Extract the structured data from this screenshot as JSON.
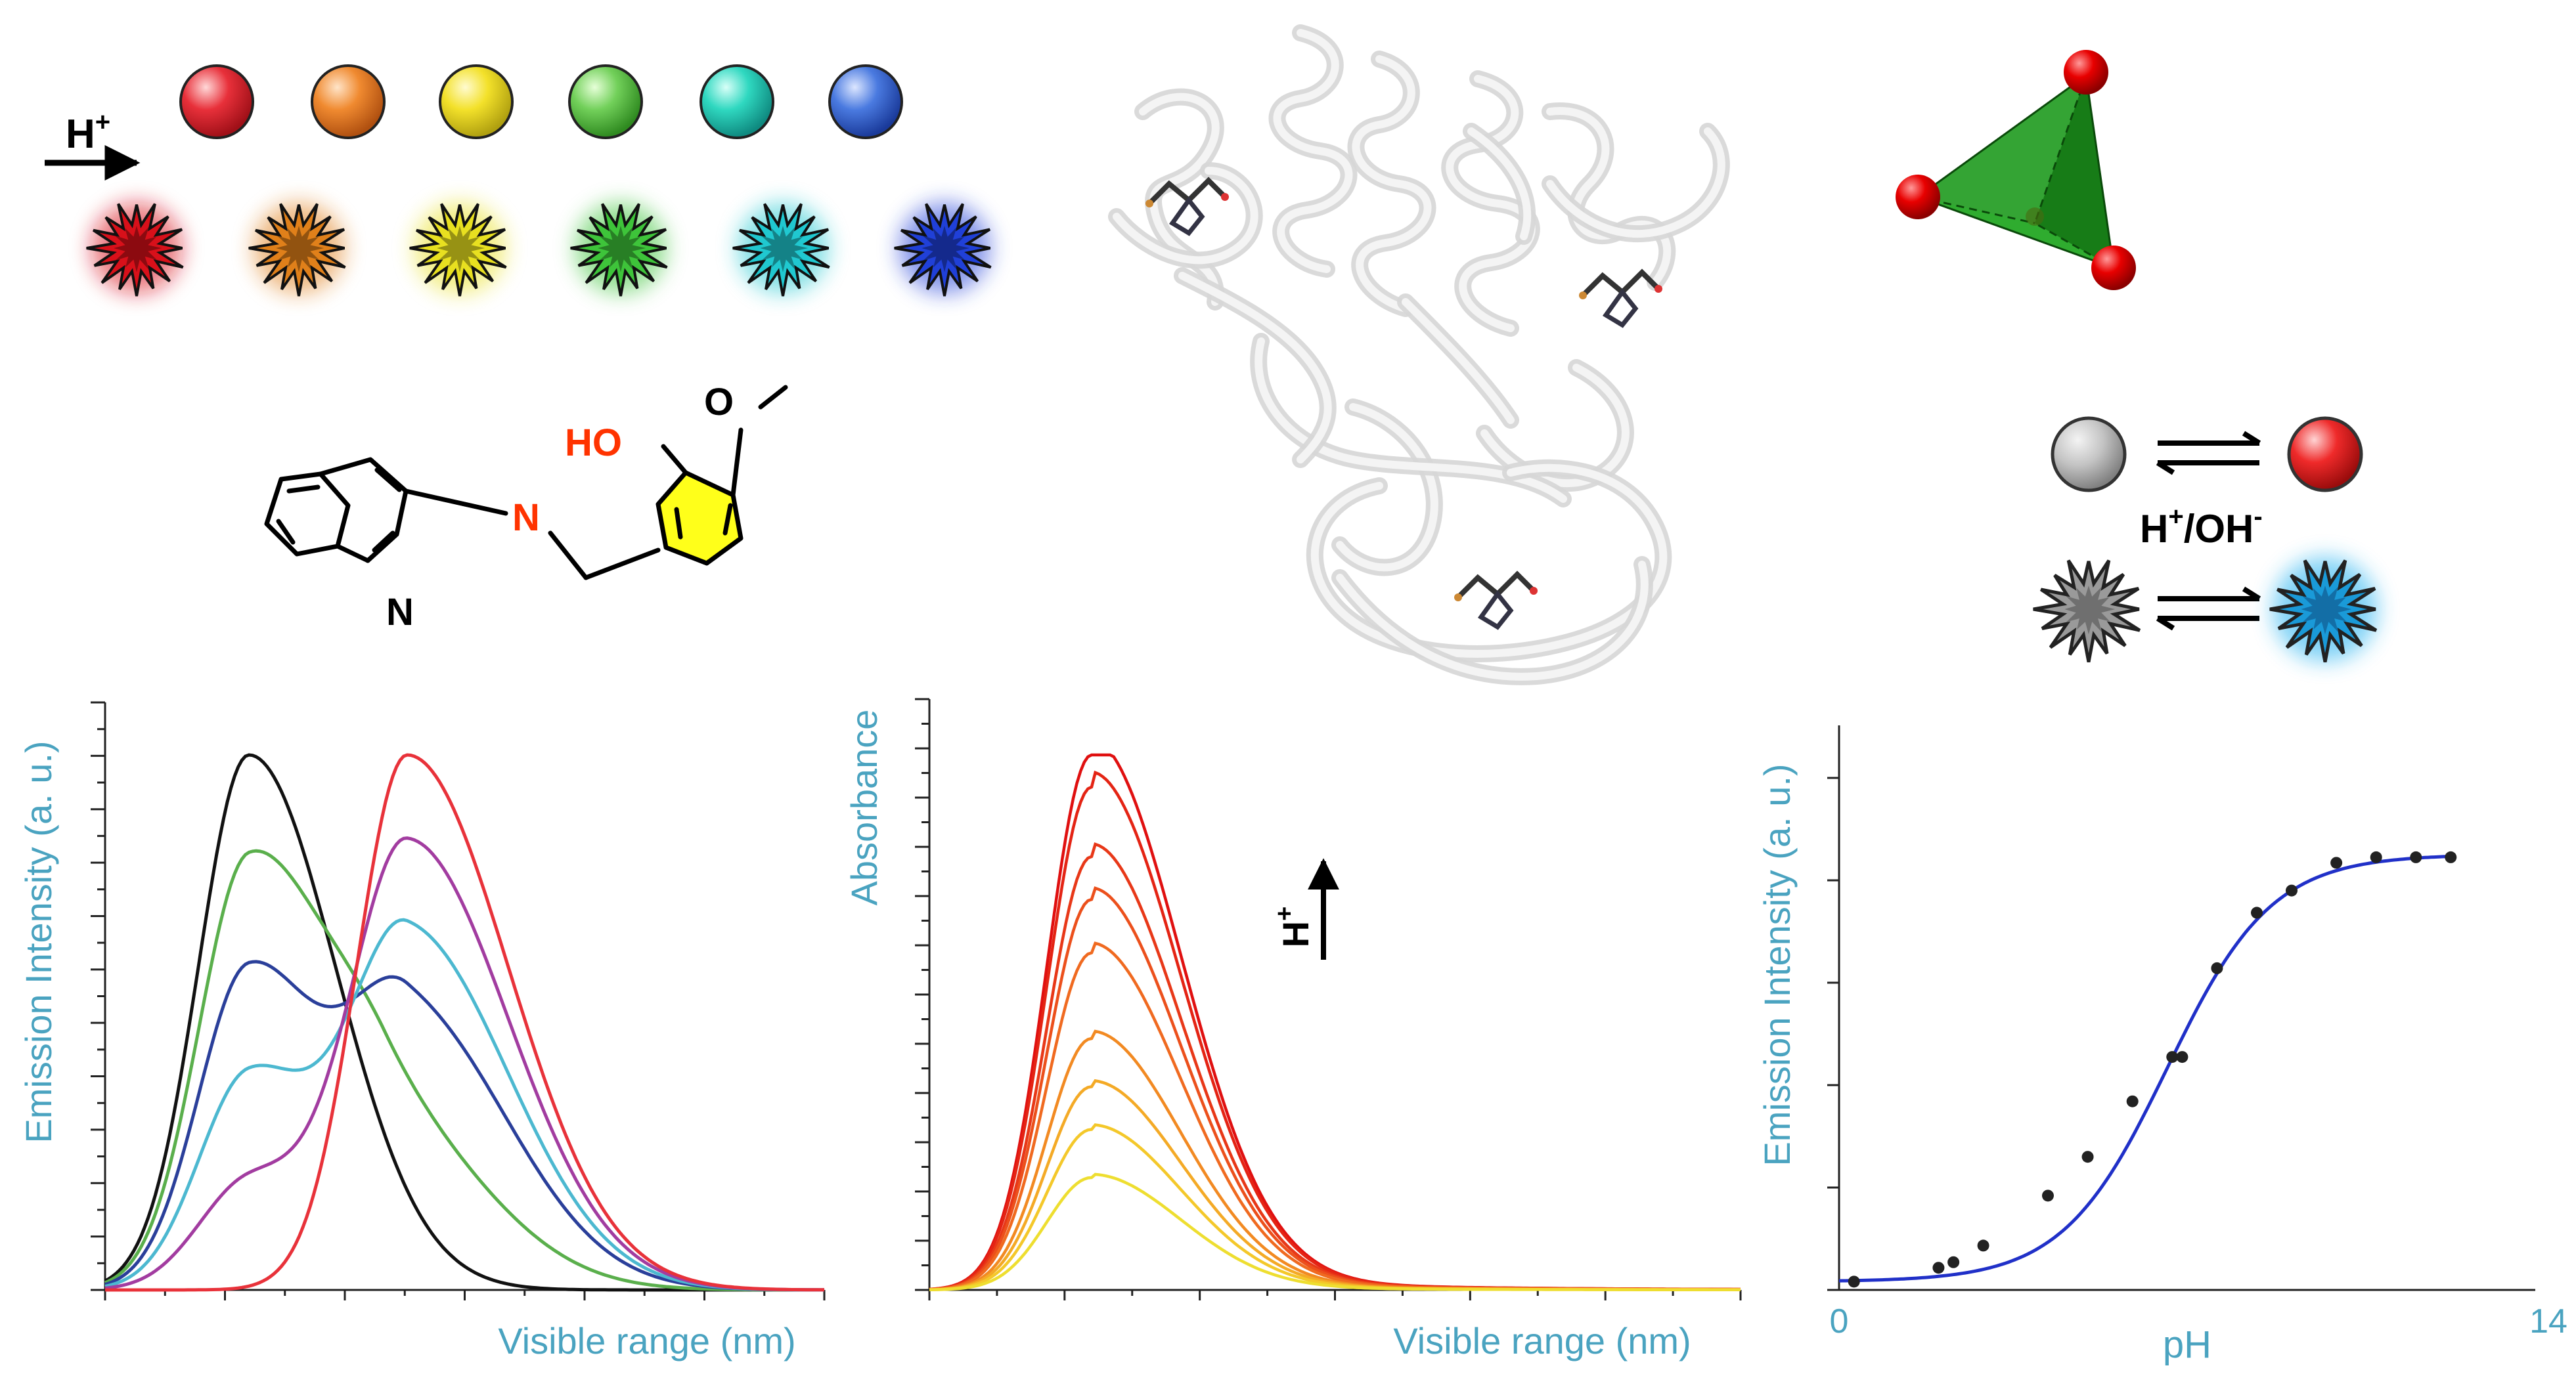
{
  "colors": {
    "axis_label": "#4aa3c0",
    "heteroatom": "#ff3300",
    "sphere_colors": [
      "#e8303a",
      "#f08a30",
      "#f3e12a",
      "#72d05a",
      "#2fd8c0",
      "#4a7ae0"
    ],
    "burst_colors": [
      "#d8101a",
      "#e0801a",
      "#e8e020",
      "#3ec43a",
      "#20c8d0",
      "#2040d8"
    ],
    "emission_series_colors": [
      "#111111",
      "#5aaf4c",
      "#2a3f9a",
      "#4cb8d0",
      "#a23ca0",
      "#e8323a"
    ]
  },
  "scheme": {
    "acid_arrow_label": "H",
    "acid_arrow_sup": "+",
    "atom_o": "O",
    "atom_ho": "HO",
    "atom_n_imine": "N",
    "atom_n_ring": "N",
    "switch_label_h": "H",
    "switch_label_sup": "+",
    "switch_label_slash": "/OH",
    "switch_label_sup2": "-",
    "abs_arrow_label": "H",
    "abs_arrow_sup": "+"
  },
  "chart_data": [
    {
      "type": "line",
      "xlabel": "Visible range (nm)",
      "ylabel": "Emission Intensity (a. u.)",
      "xlim": [
        0,
        100
      ],
      "ylim": [
        0,
        100
      ],
      "series": [
        {
          "color": "#111111",
          "peaks": [
            {
              "mu": 20,
              "sig": 7,
              "amp": 100,
              "sigR": 12
            }
          ]
        },
        {
          "color": "#5aaf4c",
          "peaks": [
            {
              "mu": 20,
              "sig": 7,
              "amp": 80,
              "sigR": 11
            },
            {
              "mu": 39,
              "sig": 8,
              "amp": 30,
              "sigR": 14
            }
          ]
        },
        {
          "color": "#2a3f9a",
          "peaks": [
            {
              "mu": 20,
              "sig": 7,
              "amp": 60,
              "sigR": 10
            },
            {
              "mu": 42,
              "sig": 8,
              "amp": 52,
              "sigR": 14
            }
          ]
        },
        {
          "color": "#4cb8d0",
          "peaks": [
            {
              "mu": 20,
              "sig": 7,
              "amp": 40,
              "sigR": 9
            },
            {
              "mu": 42,
              "sig": 8,
              "amp": 67,
              "sigR": 14
            }
          ]
        },
        {
          "color": "#a23ca0",
          "peaks": [
            {
              "mu": 20,
              "sig": 7,
              "amp": 20,
              "sigR": 8
            },
            {
              "mu": 42,
              "sig": 8,
              "amp": 84,
              "sigR": 14
            }
          ]
        },
        {
          "color": "#e8323a",
          "peaks": [
            {
              "mu": 42,
              "sig": 7,
              "amp": 100,
              "sigR": 14
            }
          ]
        }
      ]
    },
    {
      "type": "line",
      "xlabel": "Visible range (nm)",
      "ylabel": "Absorbance",
      "xlim": [
        0,
        100
      ],
      "ylim": [
        0,
        100
      ],
      "series": [
        {
          "color": "#e01010",
          "peak": 20,
          "amp": 100
        },
        {
          "color": "#e42414",
          "peak": 20,
          "amp": 94
        },
        {
          "color": "#e83818",
          "peak": 20,
          "amp": 81
        },
        {
          "color": "#ec501c",
          "peak": 20,
          "amp": 73
        },
        {
          "color": "#f06a20",
          "peak": 20,
          "amp": 63
        },
        {
          "color": "#f28a22",
          "peak": 20,
          "amp": 47
        },
        {
          "color": "#f4aa26",
          "peak": 20,
          "amp": 38
        },
        {
          "color": "#f4c82a",
          "peak": 20,
          "amp": 30
        },
        {
          "color": "#eede30",
          "peak": 20,
          "amp": 21
        }
      ]
    },
    {
      "type": "scatter",
      "xlabel": "pH",
      "ylabel": "Emission Intensity (a. u.)",
      "xlim": [
        0,
        14
      ],
      "ylim": [
        0,
        100
      ],
      "tick_labels": [
        "0",
        "14"
      ],
      "fit_color": "#2030c8",
      "points": [
        {
          "x": 0.3,
          "y": 1.5
        },
        {
          "x": 2.0,
          "y": 4.0
        },
        {
          "x": 2.3,
          "y": 5.0
        },
        {
          "x": 2.9,
          "y": 8.0
        },
        {
          "x": 4.2,
          "y": 17.0
        },
        {
          "x": 5.0,
          "y": 24.0
        },
        {
          "x": 5.9,
          "y": 34.0
        },
        {
          "x": 6.7,
          "y": 42.0
        },
        {
          "x": 6.9,
          "y": 42.0
        },
        {
          "x": 7.6,
          "y": 58.0
        },
        {
          "x": 8.4,
          "y": 68.0
        },
        {
          "x": 9.1,
          "y": 72.0
        },
        {
          "x": 10.0,
          "y": 77.0
        },
        {
          "x": 10.8,
          "y": 78.0
        },
        {
          "x": 11.6,
          "y": 78.0
        },
        {
          "x": 12.3,
          "y": 78.0
        }
      ]
    }
  ]
}
